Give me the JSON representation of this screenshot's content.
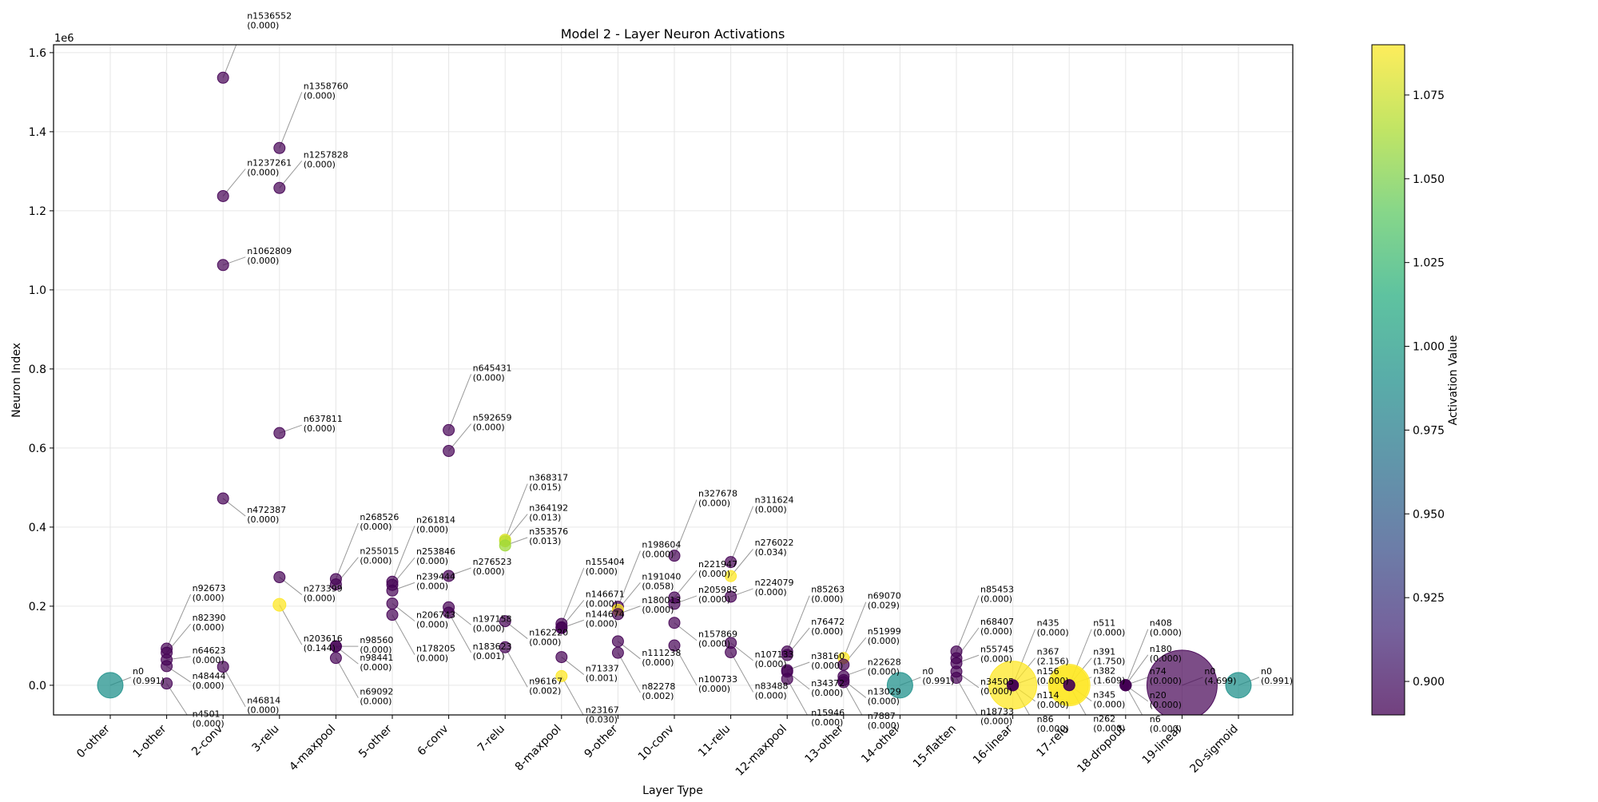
{
  "chart_data": {
    "type": "scatter",
    "title": "Model 2 - Layer Neuron Activations",
    "xlabel": "Layer Type",
    "ylabel": "Neuron Index",
    "y_offset_label": "1e6",
    "colorbar_label": "Activation Value",
    "categories": [
      "0-other",
      "1-other",
      "2-conv",
      "3-relu",
      "4-maxpool",
      "5-other",
      "6-conv",
      "7-relu",
      "8-maxpool",
      "9-other",
      "10-conv",
      "11-relu",
      "12-maxpool",
      "13-other",
      "14-other",
      "15-flatten",
      "16-linear",
      "17-relu",
      "18-dropout",
      "19-linear",
      "20-sigmoid"
    ],
    "y_ticks": [
      0.0,
      0.2,
      0.4,
      0.6,
      0.8,
      1.0,
      1.2,
      1.4,
      1.6
    ],
    "ylim": [
      -0.075,
      1.62
    ],
    "colorbar_ticks": [
      0.9,
      0.925,
      0.95,
      0.975,
      1.0,
      1.025,
      1.05,
      1.075
    ],
    "color_range": [
      0.89,
      1.09
    ],
    "colormap": "viridis",
    "grid": true,
    "points": [
      {
        "layer": 0,
        "neuron": 0,
        "label": "n0",
        "value": "(0.991)",
        "act": 0.991,
        "size": 16,
        "lx": 26,
        "ly": -14
      },
      {
        "layer": 1,
        "neuron": 92673,
        "label": "n92673",
        "value": "(0.000)",
        "act": 0.0,
        "size": 7,
        "lx": 30,
        "ly": -72
      },
      {
        "layer": 1,
        "neuron": 82390,
        "label": "n82390",
        "value": "(0.000)",
        "act": 0.0,
        "size": 7,
        "lx": 30,
        "ly": -40
      },
      {
        "layer": 1,
        "neuron": 64623,
        "label": "n64623",
        "value": "(0.000)",
        "act": 0.0,
        "size": 7,
        "lx": 30,
        "ly": -8
      },
      {
        "layer": 1,
        "neuron": 48444,
        "label": "n48444",
        "value": "(0.000)",
        "act": 0.0,
        "size": 7,
        "lx": 30,
        "ly": 16
      },
      {
        "layer": 1,
        "neuron": 4501,
        "label": "n4501",
        "value": "(0.000)",
        "act": 0.0,
        "size": 7,
        "lx": 30,
        "ly": 42
      },
      {
        "layer": 2,
        "neuron": 1536552,
        "label": "n1536552",
        "value": "(0.000)",
        "act": 0.0,
        "size": 7,
        "lx": 28,
        "ly": -74
      },
      {
        "layer": 2,
        "neuron": 1237261,
        "label": "n1237261",
        "value": "(0.000)",
        "act": 0.0,
        "size": 7,
        "lx": 28,
        "ly": -38
      },
      {
        "layer": 2,
        "neuron": 1062809,
        "label": "n1062809",
        "value": "(0.000)",
        "act": 0.0,
        "size": 7,
        "lx": 28,
        "ly": -14
      },
      {
        "layer": 2,
        "neuron": 472387,
        "label": "n472387",
        "value": "(0.000)",
        "act": 0.0,
        "size": 7,
        "lx": 28,
        "ly": 18
      },
      {
        "layer": 2,
        "neuron": 46814,
        "label": "n46814",
        "value": "(0.000)",
        "act": 0.0,
        "size": 7,
        "lx": 28,
        "ly": 46
      },
      {
        "layer": 3,
        "neuron": 1358760,
        "label": "n1358760",
        "value": "(0.000)",
        "act": 0.0,
        "size": 7,
        "lx": 28,
        "ly": -74
      },
      {
        "layer": 3,
        "neuron": 1257828,
        "label": "n1257828",
        "value": "(0.000)",
        "act": 0.0,
        "size": 7,
        "lx": 28,
        "ly": -38
      },
      {
        "layer": 3,
        "neuron": 637811,
        "label": "n637811",
        "value": "(0.000)",
        "act": 0.0,
        "size": 7,
        "lx": 28,
        "ly": -14
      },
      {
        "layer": 3,
        "neuron": 273399,
        "label": "n273399",
        "value": "(0.000)",
        "act": 0.0,
        "size": 7,
        "lx": 28,
        "ly": 18
      },
      {
        "layer": 3,
        "neuron": 203616,
        "label": "n203616",
        "value": "(0.144)",
        "act": 1.09,
        "size": 8,
        "lx": 28,
        "ly": 46
      },
      {
        "layer": 4,
        "neuron": 268526,
        "label": "n268526",
        "value": "(0.000)",
        "act": 0.0,
        "size": 7,
        "lx": 28,
        "ly": -74
      },
      {
        "layer": 4,
        "neuron": 255015,
        "label": "n255015",
        "value": "(0.000)",
        "act": 0.0,
        "size": 7,
        "lx": 28,
        "ly": -38
      },
      {
        "layer": 4,
        "neuron": 98560,
        "label": "n98560",
        "value": "(0.000)",
        "act": 0.0,
        "size": 7,
        "lx": 28,
        "ly": -4
      },
      {
        "layer": 4,
        "neuron": 98441,
        "label": "n98441",
        "value": "(0.000)",
        "act": 0.0,
        "size": 7,
        "lx": 28,
        "ly": 18
      },
      {
        "layer": 4,
        "neuron": 69092,
        "label": "n69092",
        "value": "(0.000)",
        "act": 0.0,
        "size": 7,
        "lx": 28,
        "ly": 46
      },
      {
        "layer": 5,
        "neuron": 261814,
        "label": "n261814",
        "value": "(0.000)",
        "act": 0.0,
        "size": 7,
        "lx": 28,
        "ly": -74
      },
      {
        "layer": 5,
        "neuron": 253846,
        "label": "n253846",
        "value": "(0.000)",
        "act": 0.0,
        "size": 7,
        "lx": 28,
        "ly": -38
      },
      {
        "layer": 5,
        "neuron": 239444,
        "label": "n239444",
        "value": "(0.000)",
        "act": 0.0,
        "size": 7,
        "lx": 28,
        "ly": -14
      },
      {
        "layer": 5,
        "neuron": 206743,
        "label": "n206743",
        "value": "(0.000)",
        "act": 0.0,
        "size": 7,
        "lx": 28,
        "ly": 18
      },
      {
        "layer": 5,
        "neuron": 178205,
        "label": "n178205",
        "value": "(0.000)",
        "act": 0.0,
        "size": 7,
        "lx": 28,
        "ly": 46
      },
      {
        "layer": 6,
        "neuron": 645431,
        "label": "n645431",
        "value": "(0.000)",
        "act": 0.0,
        "size": 7,
        "lx": 28,
        "ly": -74
      },
      {
        "layer": 6,
        "neuron": 592659,
        "label": "n592659",
        "value": "(0.000)",
        "act": 0.0,
        "size": 7,
        "lx": 28,
        "ly": -38
      },
      {
        "layer": 6,
        "neuron": 276523,
        "label": "n276523",
        "value": "(0.000)",
        "act": 0.0,
        "size": 7,
        "lx": 28,
        "ly": -14
      },
      {
        "layer": 6,
        "neuron": 197158,
        "label": "n197158",
        "value": "(0.000)",
        "act": 0.0,
        "size": 7,
        "lx": 28,
        "ly": 18
      },
      {
        "layer": 6,
        "neuron": 183623,
        "label": "n183623",
        "value": "(0.001)",
        "act": 0.0,
        "size": 7,
        "lx": 28,
        "ly": 46
      },
      {
        "layer": 7,
        "neuron": 368317,
        "label": "n368317",
        "value": "(0.015)",
        "act": 1.08,
        "size": 7,
        "lx": 28,
        "ly": -74
      },
      {
        "layer": 7,
        "neuron": 364192,
        "label": "n364192",
        "value": "(0.013)",
        "act": 1.07,
        "size": 7,
        "lx": 28,
        "ly": -38
      },
      {
        "layer": 7,
        "neuron": 353576,
        "label": "n353576",
        "value": "(0.013)",
        "act": 1.06,
        "size": 7,
        "lx": 28,
        "ly": -14
      },
      {
        "layer": 7,
        "neuron": 162220,
        "label": "n162220",
        "value": "(0.000)",
        "act": 0.0,
        "size": 7,
        "lx": 28,
        "ly": 18
      },
      {
        "layer": 7,
        "neuron": 96167,
        "label": "n96167",
        "value": "(0.002)",
        "act": 0.0,
        "size": 7,
        "lx": 28,
        "ly": 46
      },
      {
        "layer": 8,
        "neuron": 155404,
        "label": "n155404",
        "value": "(0.000)",
        "act": 0.0,
        "size": 7,
        "lx": 28,
        "ly": -74
      },
      {
        "layer": 8,
        "neuron": 146671,
        "label": "n146671",
        "value": "(0.000)",
        "act": 0.0,
        "size": 7,
        "lx": 28,
        "ly": -38
      },
      {
        "layer": 8,
        "neuron": 144674,
        "label": "n144674",
        "value": "(0.000)",
        "act": 0.0,
        "size": 7,
        "lx": 28,
        "ly": -14
      },
      {
        "layer": 8,
        "neuron": 71337,
        "label": "n71337",
        "value": "(0.001)",
        "act": 0.0,
        "size": 7,
        "lx": 28,
        "ly": 18
      },
      {
        "layer": 8,
        "neuron": 23167,
        "label": "n23167",
        "value": "(0.030)",
        "act": 1.09,
        "size": 7,
        "lx": 28,
        "ly": 46
      },
      {
        "layer": 9,
        "neuron": 198604,
        "label": "n198604",
        "value": "(0.000)",
        "act": 0.0,
        "size": 7,
        "lx": 28,
        "ly": -74
      },
      {
        "layer": 9,
        "neuron": 191040,
        "label": "n191040",
        "value": "(0.058)",
        "act": 1.09,
        "size": 7,
        "lx": 28,
        "ly": -38
      },
      {
        "layer": 9,
        "neuron": 180013,
        "label": "n180013",
        "value": "(0.000)",
        "act": 0.0,
        "size": 7,
        "lx": 28,
        "ly": -14
      },
      {
        "layer": 9,
        "neuron": 111238,
        "label": "n111238",
        "value": "(0.000)",
        "act": 0.0,
        "size": 7,
        "lx": 28,
        "ly": 18
      },
      {
        "layer": 9,
        "neuron": 82278,
        "label": "n82278",
        "value": "(0.002)",
        "act": 0.0,
        "size": 7,
        "lx": 28,
        "ly": 46
      },
      {
        "layer": 10,
        "neuron": 327678,
        "label": "n327678",
        "value": "(0.000)",
        "act": 0.0,
        "size": 7,
        "lx": 28,
        "ly": -74
      },
      {
        "layer": 10,
        "neuron": 221947,
        "label": "n221947",
        "value": "(0.000)",
        "act": 0.0,
        "size": 7,
        "lx": 28,
        "ly": -38
      },
      {
        "layer": 10,
        "neuron": 205985,
        "label": "n205985",
        "value": "(0.000)",
        "act": 0.0,
        "size": 7,
        "lx": 28,
        "ly": -14
      },
      {
        "layer": 10,
        "neuron": 157869,
        "label": "n157869",
        "value": "(0.000)",
        "act": 0.0,
        "size": 7,
        "lx": 28,
        "ly": 18
      },
      {
        "layer": 10,
        "neuron": 100733,
        "label": "n100733",
        "value": "(0.000)",
        "act": 0.0,
        "size": 7,
        "lx": 28,
        "ly": 46
      },
      {
        "layer": 11,
        "neuron": 311624,
        "label": "n311624",
        "value": "(0.000)",
        "act": 0.0,
        "size": 7,
        "lx": 28,
        "ly": -74
      },
      {
        "layer": 11,
        "neuron": 276022,
        "label": "n276022",
        "value": "(0.034)",
        "act": 1.09,
        "size": 7,
        "lx": 28,
        "ly": -38
      },
      {
        "layer": 11,
        "neuron": 224079,
        "label": "n224079",
        "value": "(0.000)",
        "act": 0.0,
        "size": 7,
        "lx": 28,
        "ly": -14
      },
      {
        "layer": 11,
        "neuron": 107133,
        "label": "n107133",
        "value": "(0.000)",
        "act": 0.0,
        "size": 7,
        "lx": 28,
        "ly": 18
      },
      {
        "layer": 11,
        "neuron": 83488,
        "label": "n83488",
        "value": "(0.000)",
        "act": 0.0,
        "size": 7,
        "lx": 28,
        "ly": 46
      },
      {
        "layer": 12,
        "neuron": 85263,
        "label": "n85263",
        "value": "(0.000)",
        "act": 0.0,
        "size": 7,
        "lx": 28,
        "ly": -74
      },
      {
        "layer": 12,
        "neuron": 76472,
        "label": "n76472",
        "value": "(0.000)",
        "act": 0.0,
        "size": 7,
        "lx": 28,
        "ly": -38
      },
      {
        "layer": 12,
        "neuron": 38160,
        "label": "n38160",
        "value": "(0.000)",
        "act": 0.0,
        "size": 7,
        "lx": 28,
        "ly": -14
      },
      {
        "layer": 12,
        "neuron": 34372,
        "label": "n34372",
        "value": "(0.000)",
        "act": 0.0,
        "size": 7,
        "lx": 28,
        "ly": 18
      },
      {
        "layer": 12,
        "neuron": 15946,
        "label": "n15946",
        "value": "(0.000)",
        "act": 0.0,
        "size": 7,
        "lx": 28,
        "ly": 46
      },
      {
        "layer": 13,
        "neuron": 69070,
        "label": "n69070",
        "value": "(0.029)",
        "act": 1.09,
        "size": 7,
        "lx": 28,
        "ly": -74
      },
      {
        "layer": 13,
        "neuron": 51999,
        "label": "n51999",
        "value": "(0.000)",
        "act": 0.0,
        "size": 7,
        "lx": 28,
        "ly": -38
      },
      {
        "layer": 13,
        "neuron": 22628,
        "label": "n22628",
        "value": "(0.000)",
        "act": 0.0,
        "size": 7,
        "lx": 28,
        "ly": -14
      },
      {
        "layer": 13,
        "neuron": 13029,
        "label": "n13029",
        "value": "(0.000)",
        "act": 0.0,
        "size": 7,
        "lx": 28,
        "ly": 18
      },
      {
        "layer": 13,
        "neuron": 7887,
        "label": "n7887",
        "value": "(0.000)",
        "act": 0.0,
        "size": 7,
        "lx": 28,
        "ly": 46
      },
      {
        "layer": 14,
        "neuron": 0,
        "label": "n0",
        "value": "(0.991)",
        "act": 0.991,
        "size": 16,
        "lx": 26,
        "ly": -14
      },
      {
        "layer": 15,
        "neuron": 85453,
        "label": "n85453",
        "value": "(0.000)",
        "act": 0.0,
        "size": 7,
        "lx": 28,
        "ly": -74
      },
      {
        "layer": 15,
        "neuron": 68407,
        "label": "n68407",
        "value": "(0.000)",
        "act": 0.0,
        "size": 7,
        "lx": 28,
        "ly": -42
      },
      {
        "layer": 15,
        "neuron": 55745,
        "label": "n55745",
        "value": "(0.000)",
        "act": 0.0,
        "size": 7,
        "lx": 28,
        "ly": -14
      },
      {
        "layer": 15,
        "neuron": 34505,
        "label": "n34505",
        "value": "(0.000)",
        "act": 0.0,
        "size": 7,
        "lx": 28,
        "ly": 16
      },
      {
        "layer": 15,
        "neuron": 18733,
        "label": "n18733",
        "value": "(0.000)",
        "act": 0.0,
        "size": 7,
        "lx": 28,
        "ly": 46
      },
      {
        "layer": 16,
        "neuron": 435,
        "label": "n435",
        "value": "(0.000)",
        "act": 0.0,
        "size": 7,
        "lx": 28,
        "ly": -74
      },
      {
        "layer": 16,
        "neuron": 367,
        "label": "n367",
        "value": "(2.156)",
        "act": 1.09,
        "size": 30,
        "lx": 28,
        "ly": -38
      },
      {
        "layer": 16,
        "neuron": 156,
        "label": "n156",
        "value": "(0.000)",
        "act": 0.0,
        "size": 7,
        "lx": 28,
        "ly": -14
      },
      {
        "layer": 16,
        "neuron": 114,
        "label": "n114",
        "value": "(0.000)",
        "act": 0.0,
        "size": 7,
        "lx": 28,
        "ly": 16
      },
      {
        "layer": 16,
        "neuron": 86,
        "label": "n86",
        "value": "(0.000)",
        "act": 0.0,
        "size": 7,
        "lx": 28,
        "ly": 46
      },
      {
        "layer": 17,
        "neuron": 511,
        "label": "n511",
        "value": "(0.000)",
        "act": 0.0,
        "size": 7,
        "lx": 28,
        "ly": -74
      },
      {
        "layer": 17,
        "neuron": 391,
        "label": "n391",
        "value": "(1.750)",
        "act": 1.09,
        "size": 26,
        "lx": 28,
        "ly": -38
      },
      {
        "layer": 17,
        "neuron": 382,
        "label": "n382",
        "value": "(1.609)",
        "act": 1.09,
        "size": 24,
        "lx": 28,
        "ly": -14
      },
      {
        "layer": 17,
        "neuron": 345,
        "label": "n345",
        "value": "(0.000)",
        "act": 0.0,
        "size": 7,
        "lx": 28,
        "ly": 16
      },
      {
        "layer": 17,
        "neuron": 262,
        "label": "n262",
        "value": "(0.000)",
        "act": 0.0,
        "size": 7,
        "lx": 28,
        "ly": 46
      },
      {
        "layer": 18,
        "neuron": 408,
        "label": "n408",
        "value": "(0.000)",
        "act": 0.0,
        "size": 7,
        "lx": 28,
        "ly": -74
      },
      {
        "layer": 18,
        "neuron": 180,
        "label": "n180",
        "value": "(0.000)",
        "act": 0.0,
        "size": 7,
        "lx": 28,
        "ly": -42
      },
      {
        "layer": 18,
        "neuron": 74,
        "label": "n74",
        "value": "(0.000)",
        "act": 0.0,
        "size": 7,
        "lx": 28,
        "ly": -14
      },
      {
        "layer": 18,
        "neuron": 20,
        "label": "n20",
        "value": "(0.000)",
        "act": 0.0,
        "size": 7,
        "lx": 28,
        "ly": 16
      },
      {
        "layer": 18,
        "neuron": 6,
        "label": "n6",
        "value": "(0.000)",
        "act": 0.0,
        "size": 7,
        "lx": 28,
        "ly": 46
      },
      {
        "layer": 19,
        "neuron": 0,
        "label": "n0",
        "value": "(4.699)",
        "act": 0.0,
        "size": 44,
        "lx": 26,
        "ly": -14
      },
      {
        "layer": 20,
        "neuron": 0,
        "label": "n0",
        "value": "(0.991)",
        "act": 0.991,
        "size": 16,
        "lx": 26,
        "ly": -14
      }
    ]
  }
}
